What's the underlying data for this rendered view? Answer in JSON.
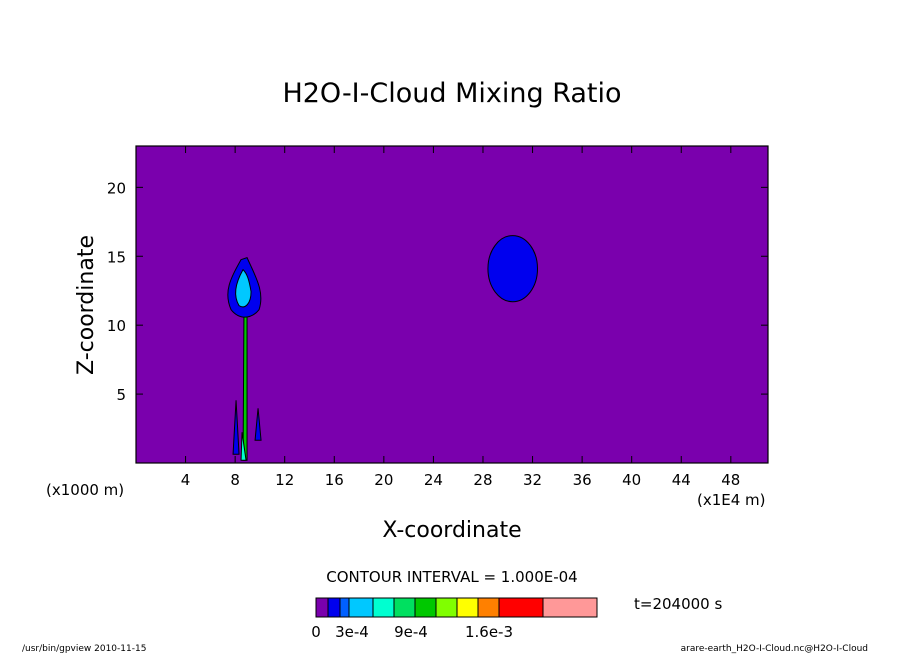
{
  "chart_data": {
    "type": "contour",
    "title": "H2O-I-Cloud Mixing Ratio",
    "xlabel": "X-coordinate",
    "ylabel": "Z-coordinate",
    "x_unit_left": "(x1000 m)",
    "x_unit_right": "(x1E4 m)",
    "xlim": [
      0,
      51
    ],
    "ylim": [
      0,
      23
    ],
    "x_ticks": [
      4,
      8,
      12,
      16,
      20,
      24,
      28,
      32,
      36,
      40,
      44,
      48
    ],
    "x_tick_labels": [
      "4",
      "8",
      "12",
      "16",
      "20",
      "24",
      "28",
      "32",
      "36",
      "40",
      "44",
      "48"
    ],
    "y_ticks": [
      5,
      10,
      15,
      20
    ],
    "y_tick_labels": [
      "5",
      "10",
      "15",
      "20"
    ],
    "background_level_color": "#7a00ad",
    "features": [
      {
        "name": "ice-cloud-blob",
        "level_color": "#0000ee",
        "center_x": 30.4,
        "center_z": 14.1,
        "half_width_x": 2.0,
        "half_height_z": 2.4
      },
      {
        "name": "convective-column",
        "level_color": "#00ffd0",
        "x_range": [
          7.6,
          10.0
        ],
        "z_range": [
          0.2,
          14.9
        ]
      }
    ],
    "contour_interval_text": "CONTOUR INTERVAL = 1.000E-04",
    "time_text": "t=204000 s",
    "colorbar": {
      "colors": [
        "#7a00ad",
        "#0000ee",
        "#0060ff",
        "#00c8ff",
        "#00ffd0",
        "#00e060",
        "#00c800",
        "#80ff00",
        "#ffff00",
        "#ff8000",
        "#ff0000",
        "#ff9898"
      ],
      "labels": [
        "0",
        "3e-4",
        "9e-4",
        "1.6e-3"
      ]
    }
  },
  "footer": {
    "left": "/usr/bin/gpview  2010-11-15",
    "right": "arare-earth_H2O-I-Cloud.nc@H2O-I-Cloud"
  }
}
